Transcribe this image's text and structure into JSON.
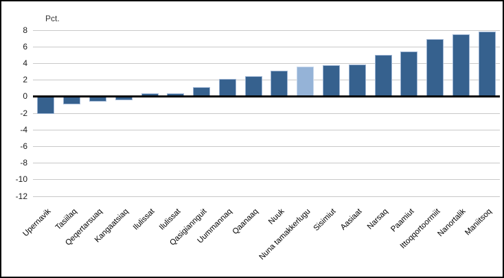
{
  "colors": {
    "bar": "#36618e",
    "highlight_bar": "#95b3d7",
    "bar_border": "#9db4d3",
    "highlight_bar_border": "#c8d8ec",
    "gridline": "#c8c8c8",
    "zero_line": "#000000",
    "background": "#ffffff",
    "frame_border": "#000000"
  },
  "chart_data": {
    "type": "bar",
    "title": "",
    "unit_label": "Pct.",
    "categories": [
      "Upernavik",
      "Tasiilaq",
      "Qeqertarsuaq",
      "Kangaatsiaq",
      "Ilulissat",
      "Ilulissat",
      "Qasigiannguit",
      "Uummannaq",
      "Qaanaaq",
      "Nuuk",
      "Nuna tamakkerlugu",
      "Sisimiut",
      "Aasiaat",
      "Narsaq",
      "Paamiut",
      "Ittoqqortoormiit",
      "Nanortalik",
      "Maniitsoq"
    ],
    "values": [
      -2.1,
      -0.9,
      -0.6,
      -0.4,
      0.4,
      0.4,
      1.1,
      2.1,
      2.5,
      3.1,
      3.6,
      3.8,
      3.9,
      5.0,
      5.4,
      6.9,
      7.5,
      7.8
    ],
    "highlight_index": 10,
    "highlight_category": "Nuna tamakkerlugu",
    "ylim": [
      -12,
      8
    ],
    "yticks": [
      8,
      6,
      4,
      2,
      0,
      -2,
      -4,
      -6,
      -8,
      -10,
      -12
    ],
    "xlabel": "",
    "ylabel": "Pct.",
    "grid": true,
    "legend": false,
    "x_label_rotation_deg": 45
  }
}
